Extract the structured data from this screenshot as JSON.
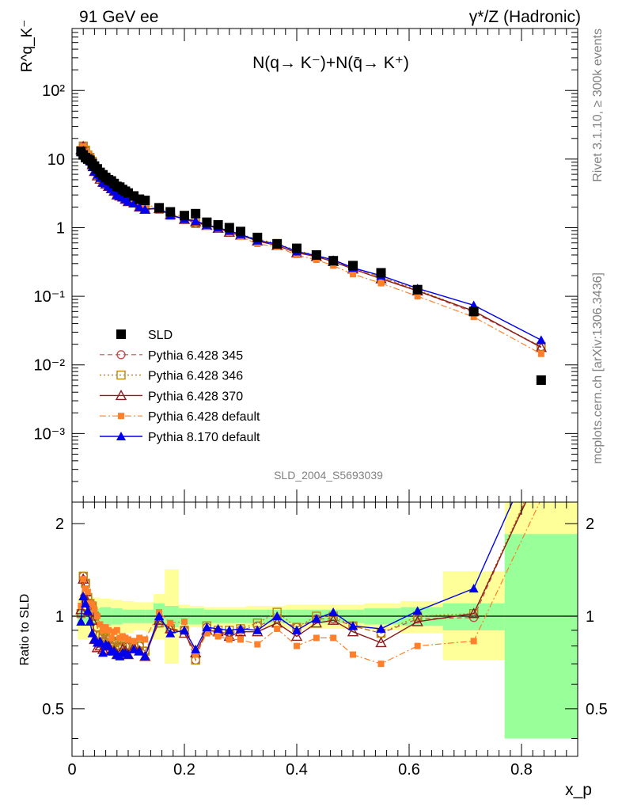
{
  "header": {
    "left": "91 GeV ee",
    "right": "γ*/Z (Hadronic)"
  },
  "side_labels": {
    "rivet": "Rivet 3.1.10, ≥ 300k events",
    "mcplots": "mcplots.cern.ch [arXiv:1306.3436]"
  },
  "colors": {
    "data": "#000000",
    "p345": "#c0504d",
    "p346": "#b8860b",
    "p370": "#8b1a1a",
    "pdef": "#ff7f2a",
    "p8": "#0000ee",
    "band_stat": "#99ff99",
    "band_tot": "#ffff99"
  },
  "chart_data": [
    {
      "type": "scatter",
      "title": "N(q→ K⁻)+N(q̄→ K⁺)",
      "ylabel": "R^q_K⁻",
      "xlabel": "",
      "watermark": "SLD_2004_S5693039",
      "yscale": "log",
      "xlim": [
        0,
        0.9
      ],
      "ylim": [
        0.0001,
        800
      ],
      "y_tick_labels": [
        "10⁻³",
        "10⁻²",
        "10⁻¹",
        "1",
        "10",
        "10²"
      ],
      "y_ticks": [
        0.001,
        0.01,
        0.1,
        1,
        10,
        100
      ],
      "legend_position": "center-left",
      "x": [
        0.016,
        0.02,
        0.024,
        0.028,
        0.032,
        0.036,
        0.04,
        0.045,
        0.05,
        0.055,
        0.06,
        0.065,
        0.07,
        0.075,
        0.08,
        0.085,
        0.09,
        0.095,
        0.1,
        0.11,
        0.12,
        0.13,
        0.155,
        0.175,
        0.2,
        0.22,
        0.24,
        0.26,
        0.28,
        0.3,
        0.33,
        0.365,
        0.4,
        0.435,
        0.465,
        0.5,
        0.55,
        0.615,
        0.715,
        0.835
      ],
      "series": [
        {
          "name": "SLD",
          "key": "data",
          "marker": "square",
          "values": [
            13.0,
            11.5,
            10.5,
            10.0,
            9.6,
            8.6,
            7.9,
            7.2,
            6.4,
            5.9,
            5.4,
            5.0,
            4.8,
            4.4,
            4.0,
            3.9,
            3.6,
            3.4,
            3.2,
            2.9,
            2.6,
            2.5,
            1.95,
            1.7,
            1.5,
            1.6,
            1.2,
            1.1,
            1.0,
            0.88,
            0.72,
            0.58,
            0.5,
            0.4,
            0.33,
            0.28,
            0.22,
            0.125,
            0.06,
            0.006
          ]
        },
        {
          "name": "Pythia 6.428 345",
          "key": "p345",
          "marker": "circle",
          "values": [
            13.3,
            15.5,
            13.5,
            11.5,
            10.6,
            9.3,
            7.9,
            6.6,
            5.6,
            5.1,
            4.6,
            4.2,
            3.9,
            3.6,
            3.3,
            3.1,
            2.9,
            2.7,
            2.5,
            2.3,
            2.1,
            1.9,
            1.85,
            1.55,
            1.35,
            1.15,
            1.1,
            0.98,
            0.88,
            0.79,
            0.67,
            0.57,
            0.46,
            0.39,
            0.32,
            0.26,
            0.19,
            0.12,
            0.058,
            0.0185
          ]
        },
        {
          "name": "Pythia 6.428 346",
          "key": "p346",
          "marker": "open-square",
          "values": [
            13.3,
            15.5,
            13.5,
            11.5,
            10.6,
            9.3,
            7.9,
            6.6,
            5.6,
            5.1,
            4.6,
            4.2,
            3.9,
            3.6,
            3.3,
            3.1,
            2.9,
            2.7,
            2.5,
            2.3,
            2.1,
            1.9,
            1.85,
            1.55,
            1.35,
            1.15,
            1.12,
            1.0,
            0.9,
            0.8,
            0.68,
            0.59,
            0.46,
            0.4,
            0.33,
            0.26,
            0.19,
            0.125,
            0.06,
            0.0185
          ]
        },
        {
          "name": "Pythia 6.428 370",
          "key": "p370",
          "marker": "open-triangle",
          "values": [
            13.7,
            15.2,
            12.6,
            11.1,
            10.0,
            8.3,
            6.6,
            5.7,
            5.1,
            4.6,
            4.3,
            4.0,
            3.7,
            3.4,
            3.0,
            2.9,
            2.8,
            2.6,
            2.4,
            2.3,
            2.0,
            1.85,
            1.9,
            1.55,
            1.32,
            1.22,
            1.08,
            0.98,
            0.86,
            0.78,
            0.64,
            0.55,
            0.43,
            0.38,
            0.32,
            0.25,
            0.18,
            0.12,
            0.061,
            0.018
          ]
        },
        {
          "name": "Pythia 6.428 default",
          "key": "pdef",
          "marker": "small-square",
          "values": [
            14.0,
            15.2,
            12.9,
            12.0,
            10.6,
            9.4,
            8.3,
            7.2,
            6.0,
            5.3,
            5.0,
            4.5,
            4.1,
            3.9,
            3.6,
            3.3,
            3.1,
            2.9,
            2.7,
            2.4,
            2.2,
            2.1,
            2.0,
            1.62,
            1.44,
            1.2,
            1.05,
            0.95,
            0.84,
            0.74,
            0.58,
            0.53,
            0.4,
            0.34,
            0.28,
            0.21,
            0.155,
            0.1,
            0.05,
            0.0145
          ]
        },
        {
          "name": "Pythia 8.170 default",
          "key": "p8",
          "marker": "triangle",
          "values": [
            12.5,
            13.4,
            11.5,
            10.4,
            9.2,
            7.6,
            6.6,
            5.9,
            5.3,
            4.5,
            4.4,
            4.0,
            3.7,
            3.4,
            3.0,
            2.9,
            2.75,
            2.6,
            2.4,
            2.25,
            2.0,
            1.85,
            1.95,
            1.5,
            1.35,
            1.25,
            1.1,
            1.0,
            0.9,
            0.8,
            0.65,
            0.58,
            0.45,
            0.39,
            0.34,
            0.26,
            0.2,
            0.13,
            0.074,
            0.023
          ]
        }
      ]
    },
    {
      "type": "line",
      "title": "",
      "ylabel": "Ratio to SLD",
      "xlabel": "x_p",
      "yscale": "log",
      "xlim": [
        0,
        0.9
      ],
      "ylim": [
        0.35,
        2.35
      ],
      "y_ticks": [
        0.5,
        1,
        2
      ],
      "y_tick_labels": [
        "0.5",
        "1",
        "2"
      ],
      "x_ticks": [
        0,
        0.2,
        0.4,
        0.6,
        0.8
      ],
      "x_tick_labels": [
        "0",
        "0.2",
        "0.4",
        "0.6",
        "0.8"
      ],
      "x": [
        0.016,
        0.02,
        0.024,
        0.028,
        0.032,
        0.036,
        0.04,
        0.045,
        0.05,
        0.055,
        0.06,
        0.065,
        0.07,
        0.075,
        0.08,
        0.085,
        0.09,
        0.095,
        0.1,
        0.11,
        0.12,
        0.13,
        0.155,
        0.175,
        0.2,
        0.22,
        0.24,
        0.26,
        0.28,
        0.3,
        0.33,
        0.365,
        0.4,
        0.435,
        0.465,
        0.5,
        0.55,
        0.615,
        0.715,
        0.835
      ],
      "series": [
        {
          "name": "Pythia 6.428 345",
          "key": "p345",
          "values": [
            1.02,
            1.35,
            1.28,
            1.15,
            1.1,
            1.08,
            1.0,
            0.92,
            0.87,
            0.86,
            0.85,
            0.84,
            0.82,
            0.82,
            0.83,
            0.8,
            0.8,
            0.8,
            0.8,
            0.8,
            0.8,
            0.77,
            0.95,
            0.91,
            0.9,
            0.72,
            0.92,
            0.89,
            0.88,
            0.9,
            0.93,
            0.98,
            0.92,
            0.98,
            0.98,
            0.93,
            0.88,
            0.98,
            0.99,
            3.1
          ]
        },
        {
          "name": "Pythia 6.428 346",
          "key": "p346",
          "values": [
            1.02,
            1.35,
            1.28,
            1.15,
            1.1,
            1.08,
            1.0,
            0.92,
            0.87,
            0.86,
            0.85,
            0.84,
            0.82,
            0.82,
            0.83,
            0.8,
            0.8,
            0.8,
            0.8,
            0.8,
            0.8,
            0.77,
            0.95,
            0.91,
            0.9,
            0.72,
            0.93,
            0.9,
            0.9,
            0.91,
            0.95,
            1.03,
            0.92,
            1.0,
            1.0,
            0.93,
            0.88,
            1.0,
            1.02,
            3.1
          ]
        },
        {
          "name": "Pythia 6.428 370",
          "key": "p370",
          "values": [
            1.05,
            1.32,
            1.2,
            1.11,
            1.04,
            0.97,
            0.84,
            0.79,
            0.8,
            0.78,
            0.8,
            0.8,
            0.77,
            0.77,
            0.75,
            0.75,
            0.78,
            0.77,
            0.75,
            0.79,
            0.77,
            0.74,
            0.97,
            0.91,
            0.88,
            0.76,
            0.9,
            0.89,
            0.86,
            0.89,
            0.89,
            0.95,
            0.86,
            0.95,
            0.97,
            0.89,
            0.82,
            0.96,
            1.02,
            3.0
          ]
        },
        {
          "name": "Pythia 6.428 default",
          "key": "pdef",
          "values": [
            1.08,
            1.32,
            1.23,
            1.2,
            1.1,
            1.09,
            1.05,
            1.0,
            0.94,
            0.9,
            0.92,
            0.9,
            0.85,
            0.89,
            0.9,
            0.85,
            0.86,
            0.85,
            0.84,
            0.83,
            0.85,
            0.84,
            1.03,
            0.95,
            0.96,
            0.75,
            0.88,
            0.86,
            0.84,
            0.84,
            0.81,
            0.91,
            0.8,
            0.85,
            0.85,
            0.75,
            0.7,
            0.8,
            0.83,
            2.4
          ]
        },
        {
          "name": "Pythia 8.170 default",
          "key": "p8",
          "values": [
            0.96,
            1.16,
            1.1,
            1.04,
            0.96,
            0.88,
            0.84,
            0.82,
            0.83,
            0.76,
            0.81,
            0.8,
            0.77,
            0.77,
            0.75,
            0.74,
            0.76,
            0.76,
            0.75,
            0.78,
            0.77,
            0.74,
            1.0,
            0.88,
            0.9,
            0.78,
            0.92,
            0.91,
            0.9,
            0.91,
            0.9,
            1.0,
            0.9,
            0.98,
            1.03,
            0.93,
            0.91,
            1.04,
            1.23,
            3.8
          ]
        }
      ],
      "bands": {
        "edges": [
          0.01,
          0.03,
          0.05,
          0.07,
          0.09,
          0.11,
          0.13,
          0.145,
          0.165,
          0.19,
          0.21,
          0.235,
          0.31,
          0.38,
          0.45,
          0.52,
          0.585,
          0.66,
          0.77,
          0.9
        ],
        "stat": [
          [
            0.95,
            1.05
          ],
          [
            0.94,
            1.06
          ],
          [
            0.93,
            1.07
          ],
          [
            0.94,
            1.06
          ],
          [
            0.95,
            1.05
          ],
          [
            0.95,
            1.05
          ],
          [
            0.95,
            1.05
          ],
          [
            0.92,
            1.1
          ],
          [
            0.92,
            1.08
          ],
          [
            0.94,
            1.06
          ],
          [
            0.94,
            1.06
          ],
          [
            0.95,
            1.05
          ],
          [
            0.95,
            1.05
          ],
          [
            0.95,
            1.05
          ],
          [
            0.95,
            1.05
          ],
          [
            0.94,
            1.06
          ],
          [
            0.93,
            1.07
          ],
          [
            0.9,
            1.1
          ],
          [
            0.4,
            1.85
          ]
        ],
        "total": [
          [
            0.84,
            1.16
          ],
          [
            0.85,
            1.15
          ],
          [
            0.86,
            1.14
          ],
          [
            0.87,
            1.13
          ],
          [
            0.88,
            1.12
          ],
          [
            0.9,
            1.11
          ],
          [
            0.89,
            1.11
          ],
          [
            0.84,
            1.18
          ],
          [
            0.7,
            1.42
          ],
          [
            0.9,
            1.09
          ],
          [
            0.92,
            1.08
          ],
          [
            0.93,
            1.07
          ],
          [
            0.92,
            1.08
          ],
          [
            0.91,
            1.09
          ],
          [
            0.91,
            1.09
          ],
          [
            0.9,
            1.1
          ],
          [
            0.88,
            1.12
          ],
          [
            0.72,
            1.4
          ],
          [
            0.4,
            2.35
          ]
        ]
      }
    }
  ]
}
